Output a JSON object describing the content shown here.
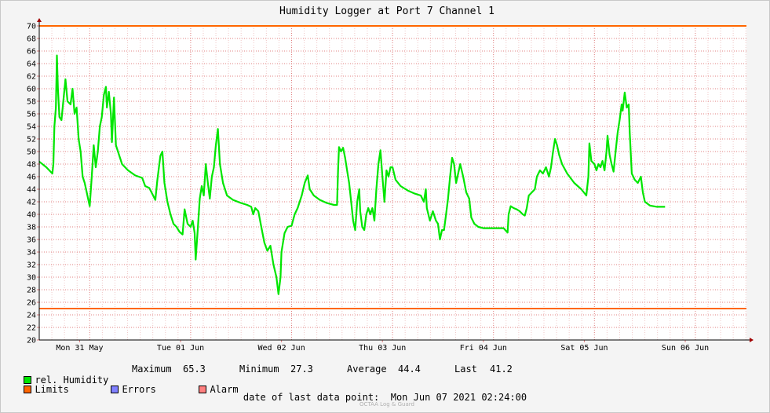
{
  "chart_data": {
    "type": "line",
    "title": "Humidity Logger at Port 7 Channel 1",
    "ylim": [
      20,
      70
    ],
    "yticks": [
      20,
      22,
      24,
      26,
      28,
      30,
      32,
      34,
      36,
      38,
      40,
      42,
      44,
      46,
      48,
      50,
      52,
      54,
      56,
      58,
      60,
      62,
      64,
      66,
      68,
      70
    ],
    "xlim": [
      0,
      7.0
    ],
    "x_day_labels": [
      "Mon 31 May",
      "Tue 01 Jun",
      "Wed 02 Jun",
      "Thu 03 Jun",
      "Fri 04 Jun",
      "Sat 05 Jun",
      "Sun 06 Jun"
    ],
    "grid": true,
    "series": [
      {
        "name": "rel. Humidity",
        "color": "#00e600",
        "points": [
          [
            0.0,
            48.4
          ],
          [
            0.07,
            47.5
          ],
          [
            0.13,
            46.5
          ],
          [
            0.14,
            48.0
          ],
          [
            0.15,
            54.0
          ],
          [
            0.165,
            57.0
          ],
          [
            0.175,
            65.3
          ],
          [
            0.185,
            60.0
          ],
          [
            0.2,
            55.5
          ],
          [
            0.22,
            55.0
          ],
          [
            0.26,
            61.5
          ],
          [
            0.28,
            58.0
          ],
          [
            0.31,
            57.5
          ],
          [
            0.33,
            60.0
          ],
          [
            0.35,
            56.0
          ],
          [
            0.37,
            57.0
          ],
          [
            0.39,
            52.0
          ],
          [
            0.41,
            50.0
          ],
          [
            0.43,
            46.0
          ],
          [
            0.45,
            45.0
          ],
          [
            0.5,
            41.3
          ],
          [
            0.52,
            46.0
          ],
          [
            0.54,
            51.0
          ],
          [
            0.56,
            47.5
          ],
          [
            0.58,
            50.0
          ],
          [
            0.6,
            54.0
          ],
          [
            0.62,
            55.5
          ],
          [
            0.64,
            59.0
          ],
          [
            0.66,
            60.3
          ],
          [
            0.67,
            57.0
          ],
          [
            0.69,
            59.5
          ],
          [
            0.71,
            56.0
          ],
          [
            0.72,
            51.5
          ],
          [
            0.74,
            58.6
          ],
          [
            0.76,
            51.0
          ],
          [
            0.78,
            50.0
          ],
          [
            0.82,
            48.0
          ],
          [
            0.88,
            47.0
          ],
          [
            0.95,
            46.2
          ],
          [
            1.02,
            45.8
          ],
          [
            1.05,
            44.5
          ],
          [
            1.09,
            44.2
          ],
          [
            1.15,
            42.3
          ],
          [
            1.17,
            45.5
          ],
          [
            1.2,
            49.3
          ],
          [
            1.22,
            50.0
          ],
          [
            1.24,
            45.0
          ],
          [
            1.27,
            42.0
          ],
          [
            1.3,
            40.0
          ],
          [
            1.33,
            38.5
          ],
          [
            1.36,
            38.0
          ],
          [
            1.39,
            37.2
          ],
          [
            1.42,
            36.8
          ],
          [
            1.44,
            40.8
          ],
          [
            1.47,
            38.5
          ],
          [
            1.5,
            38.0
          ],
          [
            1.52,
            39.0
          ],
          [
            1.54,
            37.0
          ],
          [
            1.55,
            32.8
          ],
          [
            1.57,
            37.5
          ],
          [
            1.59,
            42.5
          ],
          [
            1.61,
            44.5
          ],
          [
            1.63,
            43.0
          ],
          [
            1.65,
            48.0
          ],
          [
            1.67,
            45.0
          ],
          [
            1.69,
            42.5
          ],
          [
            1.71,
            46.0
          ],
          [
            1.73,
            47.5
          ],
          [
            1.75,
            51.0
          ],
          [
            1.77,
            53.6
          ],
          [
            1.79,
            48.0
          ],
          [
            1.82,
            45.0
          ],
          [
            1.86,
            43.0
          ],
          [
            1.92,
            42.3
          ],
          [
            2.0,
            41.8
          ],
          [
            2.06,
            41.5
          ],
          [
            2.1,
            41.2
          ],
          [
            2.12,
            40.0
          ],
          [
            2.14,
            41.0
          ],
          [
            2.17,
            40.5
          ],
          [
            2.2,
            38.0
          ],
          [
            2.23,
            35.5
          ],
          [
            2.26,
            34.2
          ],
          [
            2.29,
            35.0
          ],
          [
            2.32,
            32.0
          ],
          [
            2.35,
            30.0
          ],
          [
            2.37,
            27.3
          ],
          [
            2.39,
            30.0
          ],
          [
            2.4,
            34.0
          ],
          [
            2.43,
            37.0
          ],
          [
            2.46,
            38.0
          ],
          [
            2.5,
            38.2
          ],
          [
            2.53,
            40.0
          ],
          [
            2.56,
            41.0
          ],
          [
            2.6,
            43.0
          ],
          [
            2.63,
            45.0
          ],
          [
            2.66,
            46.2
          ],
          [
            2.68,
            44.0
          ],
          [
            2.72,
            43.0
          ],
          [
            2.78,
            42.3
          ],
          [
            2.85,
            41.8
          ],
          [
            2.92,
            41.5
          ],
          [
            2.95,
            41.5
          ],
          [
            2.96,
            47.0
          ],
          [
            2.97,
            50.7
          ],
          [
            2.99,
            50.0
          ],
          [
            3.01,
            50.6
          ],
          [
            3.03,
            49.0
          ],
          [
            3.05,
            47.0
          ],
          [
            3.07,
            45.0
          ],
          [
            3.09,
            42.0
          ],
          [
            3.11,
            39.0
          ],
          [
            3.13,
            37.5
          ],
          [
            3.15,
            42.0
          ],
          [
            3.17,
            44.0
          ],
          [
            3.18,
            40.5
          ],
          [
            3.2,
            38.0
          ],
          [
            3.22,
            37.5
          ],
          [
            3.24,
            40.0
          ],
          [
            3.26,
            41.0
          ],
          [
            3.28,
            40.0
          ],
          [
            3.3,
            41.0
          ],
          [
            3.32,
            39.0
          ],
          [
            3.34,
            44.0
          ],
          [
            3.36,
            48.0
          ],
          [
            3.38,
            50.2
          ],
          [
            3.4,
            46.0
          ],
          [
            3.42,
            42.0
          ],
          [
            3.44,
            47.0
          ],
          [
            3.46,
            46.0
          ],
          [
            3.48,
            47.5
          ],
          [
            3.5,
            47.5
          ],
          [
            3.53,
            45.5
          ],
          [
            3.58,
            44.5
          ],
          [
            3.65,
            43.8
          ],
          [
            3.72,
            43.3
          ],
          [
            3.78,
            43.0
          ],
          [
            3.81,
            42.0
          ],
          [
            3.83,
            44.0
          ],
          [
            3.84,
            41.0
          ],
          [
            3.87,
            39.0
          ],
          [
            3.9,
            40.5
          ],
          [
            3.93,
            39.0
          ],
          [
            3.95,
            38.5
          ],
          [
            3.97,
            36.0
          ],
          [
            3.99,
            37.5
          ],
          [
            4.01,
            37.5
          ],
          [
            4.03,
            40.0
          ],
          [
            4.05,
            42.5
          ],
          [
            4.07,
            46.0
          ],
          [
            4.09,
            49.0
          ],
          [
            4.11,
            48.0
          ],
          [
            4.13,
            45.0
          ],
          [
            4.15,
            46.5
          ],
          [
            4.17,
            48.0
          ],
          [
            4.2,
            46.0
          ],
          [
            4.23,
            43.5
          ],
          [
            4.26,
            42.5
          ],
          [
            4.28,
            39.5
          ],
          [
            4.31,
            38.5
          ],
          [
            4.35,
            38.0
          ],
          [
            4.4,
            37.8
          ],
          [
            4.5,
            37.8
          ],
          [
            4.6,
            37.8
          ],
          [
            4.64,
            37.1
          ],
          [
            4.65,
            40.0
          ],
          [
            4.67,
            41.3
          ],
          [
            4.7,
            41.0
          ],
          [
            4.73,
            40.8
          ],
          [
            4.76,
            40.5
          ],
          [
            4.79,
            40.0
          ],
          [
            4.81,
            39.8
          ],
          [
            4.83,
            41.0
          ],
          [
            4.85,
            43.0
          ],
          [
            4.88,
            43.5
          ],
          [
            4.91,
            44.0
          ],
          [
            4.93,
            46.0
          ],
          [
            4.96,
            47.0
          ],
          [
            4.99,
            46.5
          ],
          [
            5.02,
            47.5
          ],
          [
            5.05,
            46.0
          ],
          [
            5.07,
            47.5
          ],
          [
            5.09,
            50.0
          ],
          [
            5.11,
            52.0
          ],
          [
            5.13,
            51.0
          ],
          [
            5.15,
            49.5
          ],
          [
            5.18,
            48.0
          ],
          [
            5.23,
            46.5
          ],
          [
            5.3,
            45.0
          ],
          [
            5.37,
            44.0
          ],
          [
            5.42,
            43.0
          ],
          [
            5.44,
            46.0
          ],
          [
            5.45,
            51.3
          ],
          [
            5.47,
            48.5
          ],
          [
            5.5,
            48.0
          ],
          [
            5.52,
            47.0
          ],
          [
            5.54,
            48.0
          ],
          [
            5.56,
            47.5
          ],
          [
            5.58,
            48.5
          ],
          [
            5.6,
            47.0
          ],
          [
            5.62,
            50.0
          ],
          [
            5.63,
            52.5
          ],
          [
            5.65,
            49.5
          ],
          [
            5.67,
            48.0
          ],
          [
            5.69,
            46.8
          ],
          [
            5.71,
            50.0
          ],
          [
            5.73,
            53.0
          ],
          [
            5.75,
            55.0
          ],
          [
            5.77,
            57.5
          ],
          [
            5.78,
            56.5
          ],
          [
            5.8,
            59.4
          ],
          [
            5.82,
            57.0
          ],
          [
            5.84,
            57.5
          ],
          [
            5.85,
            53.0
          ],
          [
            5.87,
            46.5
          ],
          [
            5.9,
            45.5
          ],
          [
            5.93,
            45.0
          ],
          [
            5.96,
            46.0
          ],
          [
            5.98,
            43.5
          ],
          [
            6.0,
            42.0
          ],
          [
            6.05,
            41.4
          ],
          [
            6.12,
            41.2
          ],
          [
            6.2,
            41.2
          ]
        ]
      }
    ],
    "limits": {
      "name": "Limits",
      "color": "#ff6600",
      "upper": 70,
      "lower": 25
    },
    "stats": {
      "max_label": "Maximum",
      "max": "65.3",
      "min_label": "Minimum",
      "min": "27.3",
      "avg_label": "Average",
      "avg": "44.4",
      "last_label": "Last",
      "last": "41.2"
    }
  },
  "legend": {
    "humidity": {
      "label": "rel. Humidity",
      "color": "#00e600"
    },
    "limits": {
      "label": "Limits",
      "color": "#ff6600"
    },
    "errors": {
      "label": "Errors",
      "color": "#8080ff"
    },
    "alarm": {
      "label": "Alarm",
      "color": "#ff8080"
    }
  },
  "footer": {
    "label": "date of last data point:",
    "value": "Mon Jun 07 2021 02:24:00"
  },
  "watermark": "OCTAA Log & Guard"
}
